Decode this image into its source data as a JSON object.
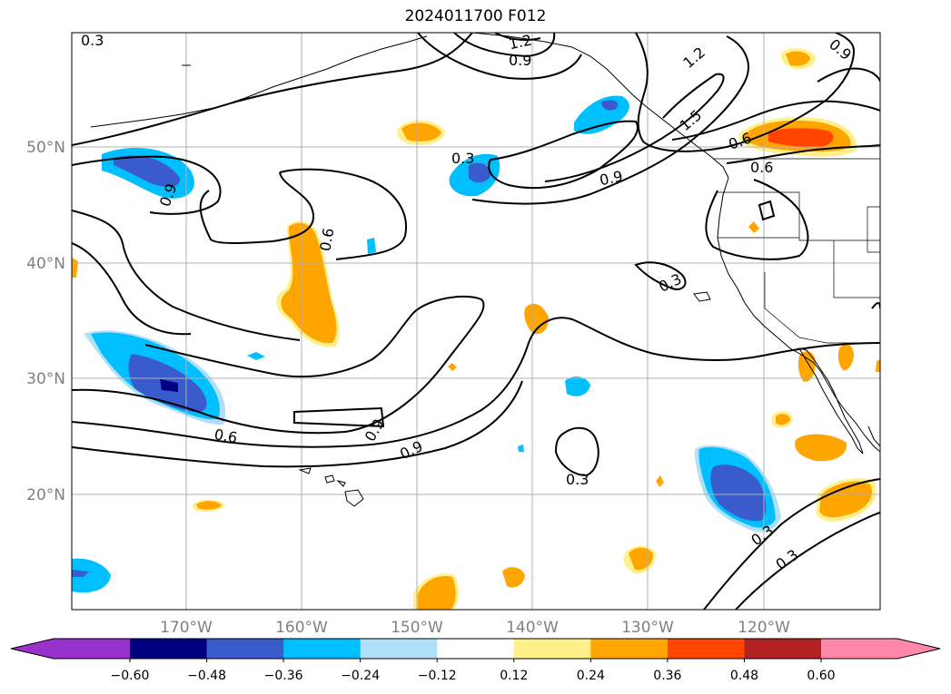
{
  "title": "2024011700 F012",
  "colors": {
    "neg_extend": "#9932cc",
    "extend_pos": "#ff88aa",
    "bins": [
      "#000080",
      "#3a5bcc",
      "#00bfff",
      "#b0e0f8",
      "#ffffff",
      "#fff08c",
      "#ffa500",
      "#ff4500",
      "#b22222"
    ],
    "land_line": "#000000",
    "grid": "#b0b0b0"
  },
  "lat_labels": [
    "20°N",
    "30°N",
    "40°N",
    "50°N"
  ],
  "lon_labels": [
    "170°W",
    "160°W",
    "150°W",
    "140°W",
    "130°W",
    "120°W"
  ],
  "colorbar_ticks": [
    "−0.60",
    "−0.48",
    "−0.36",
    "−0.24",
    "−0.12",
    "0.12",
    "0.24",
    "0.36",
    "0.48",
    "0.60"
  ],
  "contour_labels": [
    "0.3",
    "1.2",
    "0.9",
    "0.9",
    "1.2",
    "0.9",
    "1.5",
    "0.6",
    "0.6",
    "0.3",
    "0.9",
    "0.9",
    "0.6",
    "0.3",
    "0.6",
    "0.9",
    "0.3",
    "0.3",
    "0.3",
    "0.3"
  ]
}
